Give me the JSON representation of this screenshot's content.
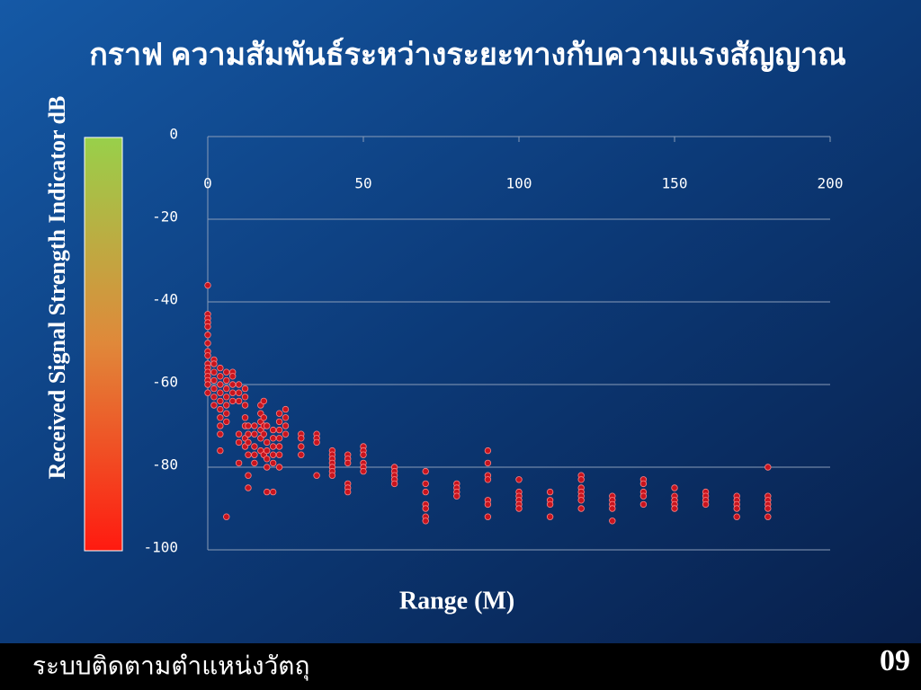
{
  "chart_data": {
    "type": "scatter",
    "title": "กราฟ ความสัมพันธ์ระหว่างระยะทางกับความแรงสัญญาณ",
    "ylabel": "Received Signal Strength Indicator dB",
    "xlabel": "Range (M)",
    "color": "#c8141e",
    "xlim": [
      0,
      200
    ],
    "xticks": [
      0,
      50,
      100,
      150,
      200
    ],
    "ylim": [
      -100,
      0
    ],
    "yticks": [
      0,
      -20,
      -40,
      -60,
      -80,
      -100
    ],
    "grid": true,
    "x": [
      0,
      0,
      0,
      0,
      0,
      0,
      0,
      0,
      0,
      0,
      0,
      0,
      0,
      0,
      0,
      0,
      2,
      2,
      2,
      2,
      2,
      2,
      2,
      4,
      4,
      4,
      4,
      4,
      4,
      4,
      4,
      4,
      4,
      6,
      6,
      6,
      6,
      6,
      6,
      6,
      6,
      8,
      8,
      8,
      8,
      8,
      10,
      10,
      10,
      10,
      10,
      10,
      12,
      12,
      12,
      12,
      12,
      12,
      12,
      13,
      13,
      13,
      13,
      13,
      13,
      15,
      15,
      15,
      15,
      15,
      17,
      17,
      17,
      17,
      17,
      17,
      18,
      18,
      18,
      18,
      18,
      19,
      19,
      19,
      19,
      19,
      19,
      21,
      21,
      21,
      21,
      21,
      21,
      23,
      23,
      23,
      23,
      23,
      23,
      23,
      25,
      25,
      25,
      25,
      30,
      30,
      30,
      30,
      35,
      35,
      35,
      35,
      40,
      40,
      40,
      40,
      40,
      40,
      40,
      45,
      45,
      45,
      45,
      45,
      45,
      50,
      50,
      50,
      50,
      50,
      50,
      60,
      60,
      60,
      60,
      60,
      70,
      70,
      70,
      70,
      70,
      70,
      70,
      80,
      80,
      80,
      80,
      90,
      90,
      90,
      90,
      90,
      90,
      90,
      100,
      100,
      100,
      100,
      100,
      100,
      110,
      110,
      110,
      110,
      120,
      120,
      120,
      120,
      120,
      120,
      120,
      130,
      130,
      130,
      130,
      130,
      140,
      140,
      140,
      140,
      140,
      150,
      150,
      150,
      150,
      150,
      160,
      160,
      160,
      160,
      170,
      170,
      170,
      170,
      170,
      180,
      180,
      180,
      180,
      180,
      180
    ],
    "values": [
      -36,
      -43,
      -44,
      -45,
      -46,
      -48,
      -50,
      -52,
      -53,
      -55,
      -56,
      -57,
      -58,
      -59,
      -60,
      -62,
      -54,
      -55,
      -57,
      -59,
      -61,
      -63,
      -65,
      -56,
      -58,
      -60,
      -62,
      -64,
      -66,
      -68,
      -70,
      -72,
      -76,
      -57,
      -59,
      -61,
      -63,
      -65,
      -67,
      -69,
      -92,
      -57,
      -58,
      -60,
      -62,
      -64,
      -60,
      -62,
      -64,
      -72,
      -74,
      -79,
      -61,
      -63,
      -65,
      -68,
      -70,
      -73,
      -75,
      -70,
      -72,
      -74,
      -77,
      -82,
      -85,
      -70,
      -72,
      -75,
      -77,
      -79,
      -65,
      -67,
      -69,
      -71,
      -73,
      -76,
      -64,
      -68,
      -70,
      -72,
      -77,
      -70,
      -74,
      -76,
      -78,
      -80,
      -86,
      -71,
      -73,
      -75,
      -77,
      -79,
      -86,
      -67,
      -69,
      -71,
      -73,
      -75,
      -77,
      -80,
      -66,
      -68,
      -70,
      -72,
      -72,
      -73,
      -75,
      -77,
      -72,
      -73,
      -74,
      -82,
      -76,
      -77,
      -78,
      -79,
      -80,
      -81,
      -82,
      -77,
      -78,
      -79,
      -84,
      -85,
      -86,
      -75,
      -76,
      -77,
      -79,
      -80,
      -81,
      -80,
      -81,
      -82,
      -83,
      -84,
      -81,
      -84,
      -86,
      -89,
      -90,
      -92,
      -93,
      -84,
      -85,
      -86,
      -87,
      -76,
      -79,
      -82,
      -83,
      -88,
      -89,
      -92,
      -83,
      -86,
      -87,
      -88,
      -89,
      -90,
      -86,
      -88,
      -89,
      -92,
      -82,
      -83,
      -85,
      -86,
      -87,
      -88,
      -90,
      -87,
      -88,
      -89,
      -90,
      -93,
      -83,
      -84,
      -86,
      -87,
      -89,
      -85,
      -87,
      -88,
      -89,
      -90,
      -86,
      -87,
      -88,
      -89,
      -87,
      -88,
      -89,
      -90,
      -92,
      -80,
      -87,
      -88,
      -89,
      -90,
      -92
    ]
  },
  "footer": {
    "text": "ระบบติดตามตำแหน่งวัตถุ",
    "page": "09"
  }
}
